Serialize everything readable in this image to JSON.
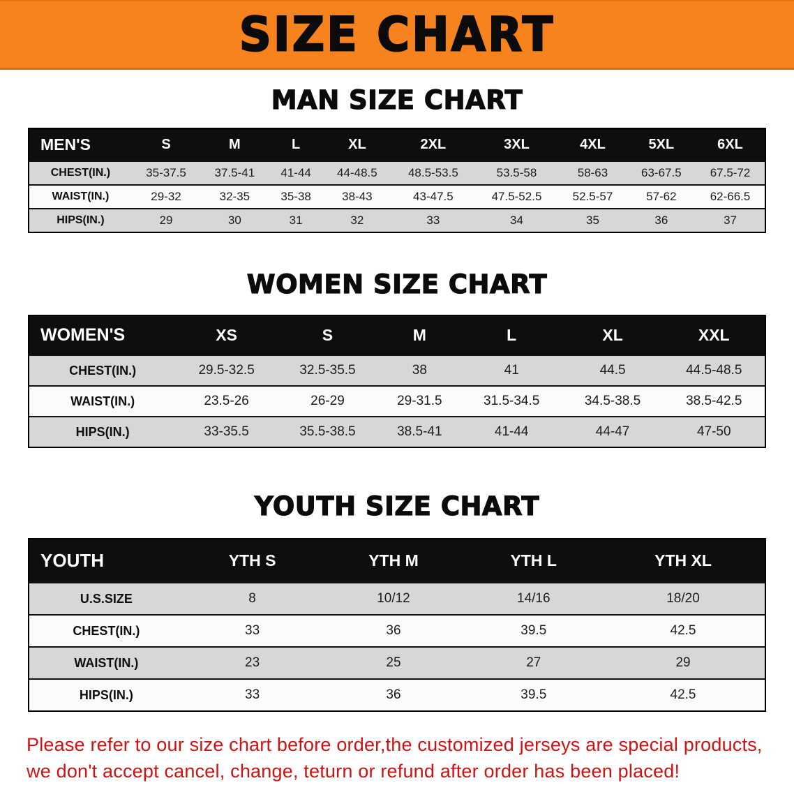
{
  "banner": {
    "title": "SIZE CHART",
    "bg_color": "#f6831e"
  },
  "chart_data": [
    {
      "type": "table",
      "title": "MAN SIZE CHART",
      "header": [
        "MEN'S",
        "S",
        "M",
        "L",
        "XL",
        "2XL",
        "3XL",
        "4XL",
        "5XL",
        "6XL"
      ],
      "rows": [
        [
          "CHEST(IN.)",
          "35-37.5",
          "37.5-41",
          "41-44",
          "44-48.5",
          "48.5-53.5",
          "53.5-58",
          "58-63",
          "63-67.5",
          "67.5-72"
        ],
        [
          "WAIST(IN.)",
          "29-32",
          "32-35",
          "35-38",
          "38-43",
          "43-47.5",
          "47.5-52.5",
          "52.5-57",
          "57-62",
          "62-66.5"
        ],
        [
          "HIPS(IN.)",
          "29",
          "30",
          "31",
          "32",
          "33",
          "34",
          "35",
          "36",
          "37"
        ]
      ]
    },
    {
      "type": "table",
      "title": "WOMEN SIZE CHART",
      "header": [
        "WOMEN'S",
        "XS",
        "S",
        "M",
        "L",
        "XL",
        "XXL"
      ],
      "rows": [
        [
          "CHEST(IN.)",
          "29.5-32.5",
          "32.5-35.5",
          "38",
          "41",
          "44.5",
          "44.5-48.5"
        ],
        [
          "WAIST(IN.)",
          "23.5-26",
          "26-29",
          "29-31.5",
          "31.5-34.5",
          "34.5-38.5",
          "38.5-42.5"
        ],
        [
          "HIPS(IN.)",
          "33-35.5",
          "35.5-38.5",
          "38.5-41",
          "41-44",
          "44-47",
          "47-50"
        ]
      ]
    },
    {
      "type": "table",
      "title": "YOUTH SIZE CHART",
      "header": [
        "YOUTH",
        "YTH S",
        "YTH M",
        "YTH L",
        "YTH XL"
      ],
      "rows": [
        [
          "U.S.SIZE",
          "8",
          "10/12",
          "14/16",
          "18/20"
        ],
        [
          "CHEST(IN.)",
          "33",
          "36",
          "39.5",
          "42.5"
        ],
        [
          "WAIST(IN.)",
          "23",
          "25",
          "27",
          "29"
        ],
        [
          "HIPS(IN.)",
          "33",
          "36",
          "39.5",
          "42.5"
        ]
      ]
    }
  ],
  "disclaimer": {
    "text_color": "#cf1212",
    "lines": [
      "Please refer to our size chart before order,the customized jerseys are special products,",
      "we don't accept cancel, change, teturn or refund after order has been placed!"
    ]
  }
}
